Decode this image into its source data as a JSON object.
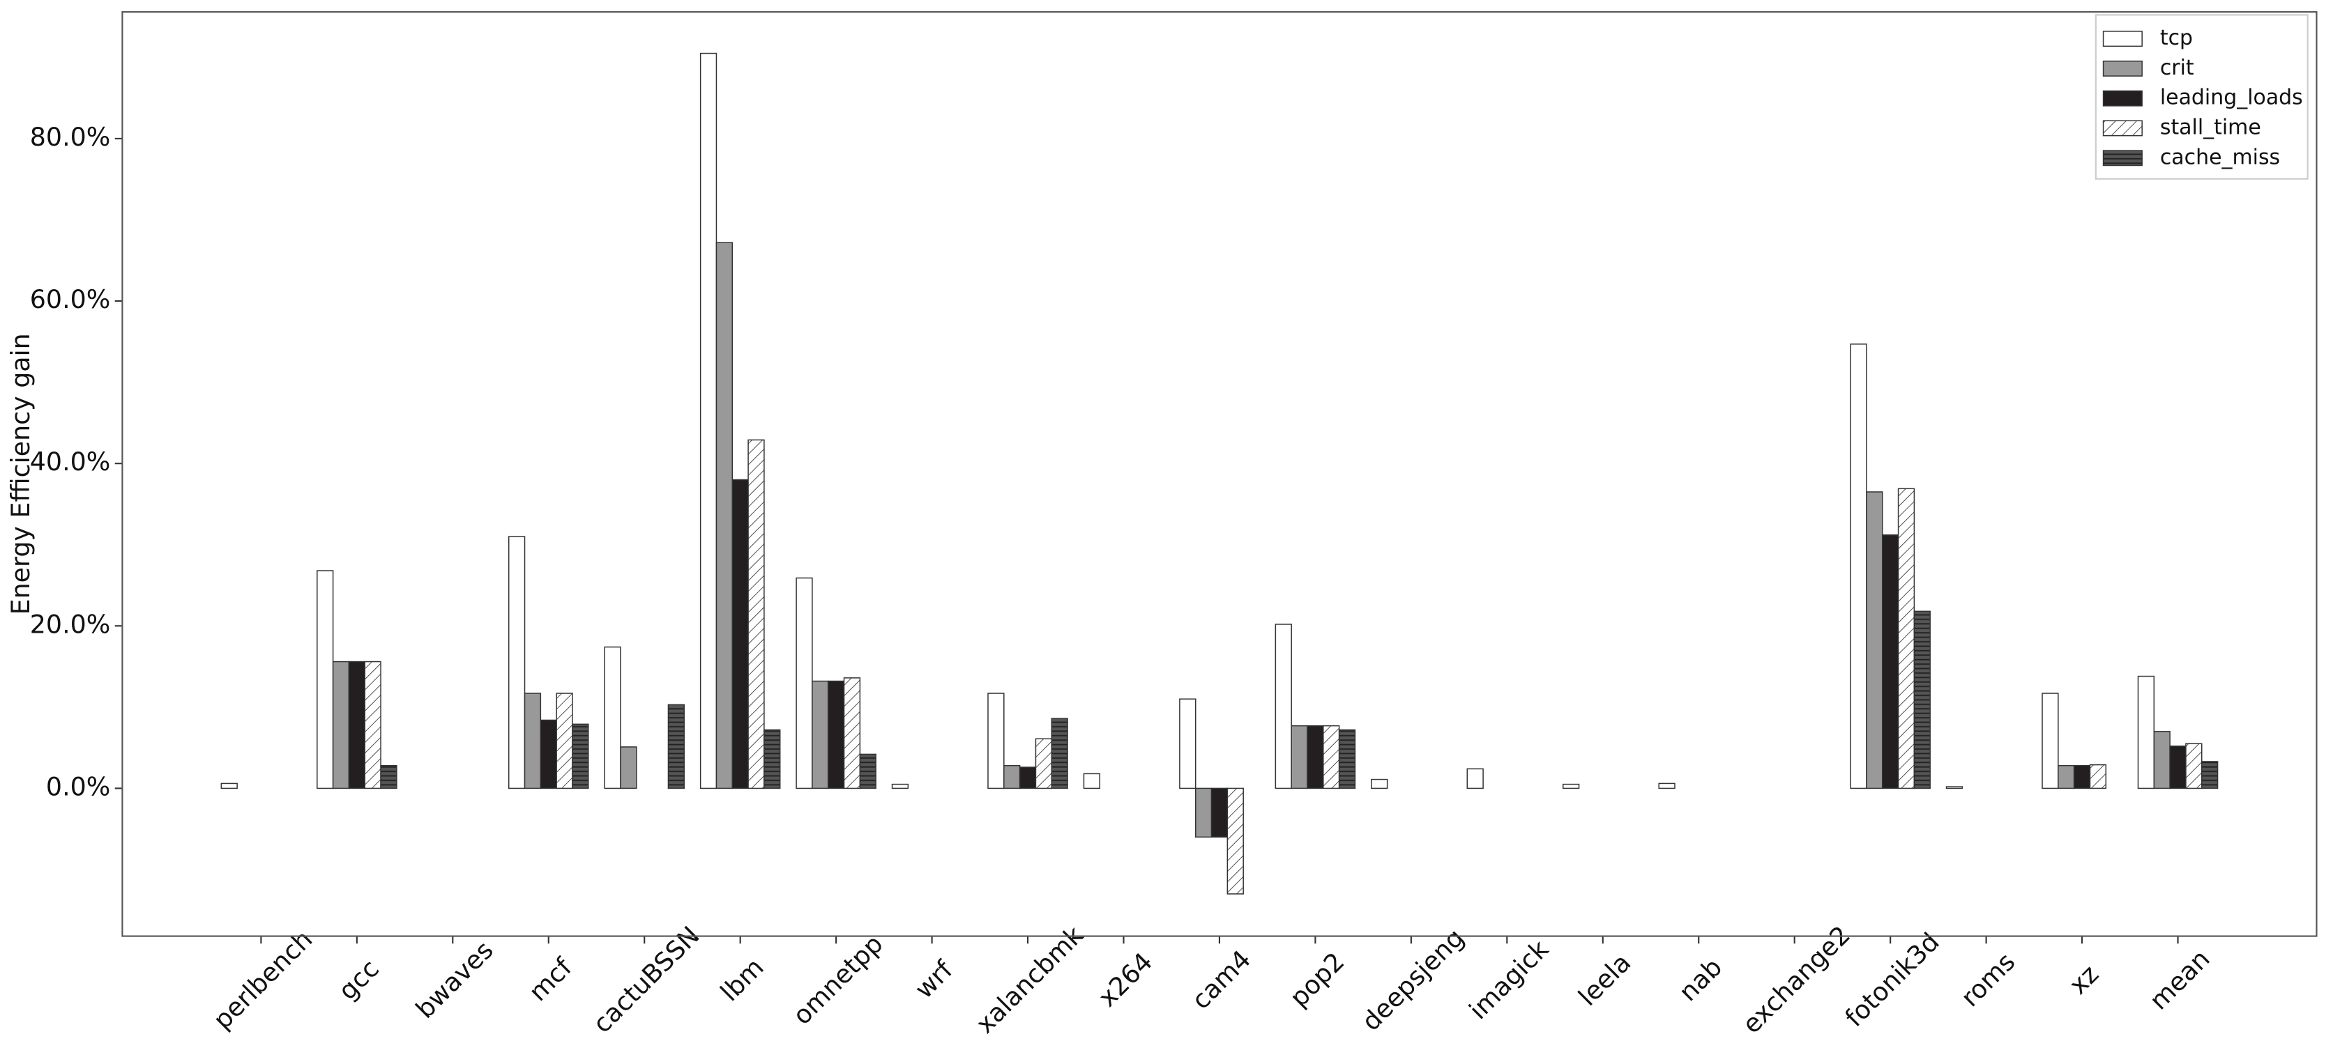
{
  "chart_data": {
    "type": "bar",
    "ylabel": "Energy Efficiency gain",
    "categories": [
      "perlbench",
      "gcc",
      "bwaves",
      "mcf",
      "cactuBSSN",
      "lbm",
      "omnetpp",
      "wrf",
      "xalancbmk",
      "x264",
      "cam4",
      "pop2",
      "deepsjeng",
      "imagick",
      "leela",
      "nab",
      "exchange2",
      "fotonik3d",
      "roms",
      "xz",
      "mean"
    ],
    "series": [
      {
        "name": "tcp",
        "color": "#ffffff",
        "values": [
          0.6,
          26.8,
          0,
          31,
          17.4,
          90.5,
          25.9,
          0.5,
          11.7,
          1.8,
          11,
          20.2,
          1.1,
          2.4,
          0.5,
          0.6,
          0,
          54.7,
          0.2,
          11.7,
          13.8
        ]
      },
      {
        "name": "crit",
        "color": "#999999",
        "values": [
          0,
          15.6,
          0,
          11.7,
          5.1,
          67.2,
          13.2,
          0,
          2.8,
          0,
          -6,
          7.7,
          0,
          0,
          0,
          0,
          0,
          36.5,
          0,
          2.8,
          7
        ]
      },
      {
        "name": "leading_loads",
        "color": "#231f20",
        "values": [
          0,
          15.6,
          0,
          8.4,
          0,
          38,
          13.2,
          0,
          2.6,
          0,
          -6,
          7.7,
          0,
          0,
          0,
          0,
          0,
          31.2,
          0,
          2.8,
          5.2
        ]
      },
      {
        "name": "stall_time",
        "color": "#ffffff",
        "hatch": "diagonal",
        "values": [
          0,
          15.6,
          0,
          11.7,
          0,
          42.9,
          13.6,
          0,
          6.1,
          0,
          -13,
          7.7,
          0,
          0,
          0,
          0,
          0,
          36.9,
          0,
          2.9,
          5.5
        ]
      },
      {
        "name": "cache_miss",
        "color": "#555555",
        "hatch": "horizontal",
        "values": [
          0,
          2.8,
          0,
          7.9,
          10.3,
          7.2,
          4.2,
          0,
          8.6,
          0,
          0,
          7.2,
          0,
          0,
          0,
          0,
          0,
          21.8,
          0,
          0,
          3.3
        ]
      }
    ],
    "ylim": [
      -18.2,
      95.6
    ],
    "yticks": [
      {
        "value": 0,
        "label": "0.0%"
      },
      {
        "value": 20,
        "label": "20.0%"
      },
      {
        "value": 40,
        "label": "40.0%"
      },
      {
        "value": 60,
        "label": "60.0%"
      },
      {
        "value": 80,
        "label": "80.0%"
      }
    ],
    "legend": "upper right"
  }
}
